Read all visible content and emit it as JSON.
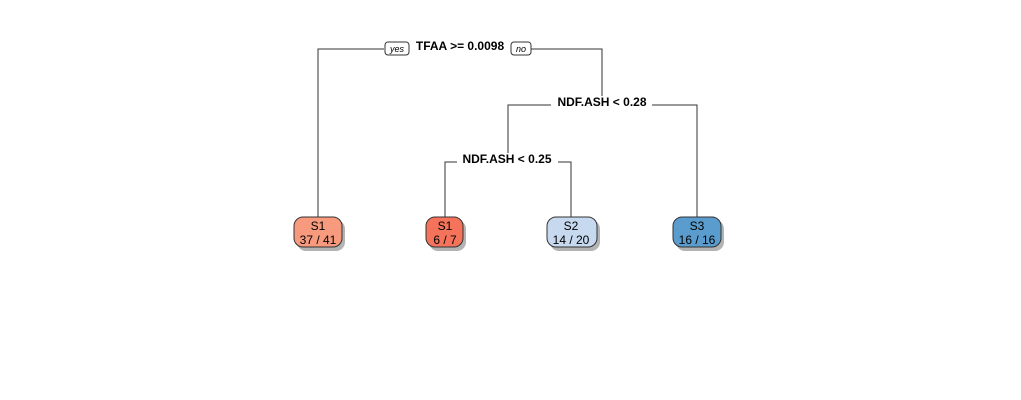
{
  "tree": {
    "splits": {
      "root": {
        "label": "TFAA >= 0.0098"
      },
      "right": {
        "label": "NDF.ASH < 0.28"
      },
      "inner": {
        "label": "NDF.ASH < 0.25"
      }
    },
    "branch_tags": {
      "yes": "yes",
      "no": "no"
    },
    "leaves": {
      "leaf1": {
        "class": "S1",
        "count": "37 / 41",
        "fill": "#f79a7e"
      },
      "leaf2": {
        "class": "S1",
        "count": "6 / 7",
        "fill": "#f5735a"
      },
      "leaf3": {
        "class": "S2",
        "count": "14 / 20",
        "fill": "#c6d9ee"
      },
      "leaf4": {
        "class": "S3",
        "count": "16 / 16",
        "fill": "#5a9ccd"
      }
    }
  }
}
